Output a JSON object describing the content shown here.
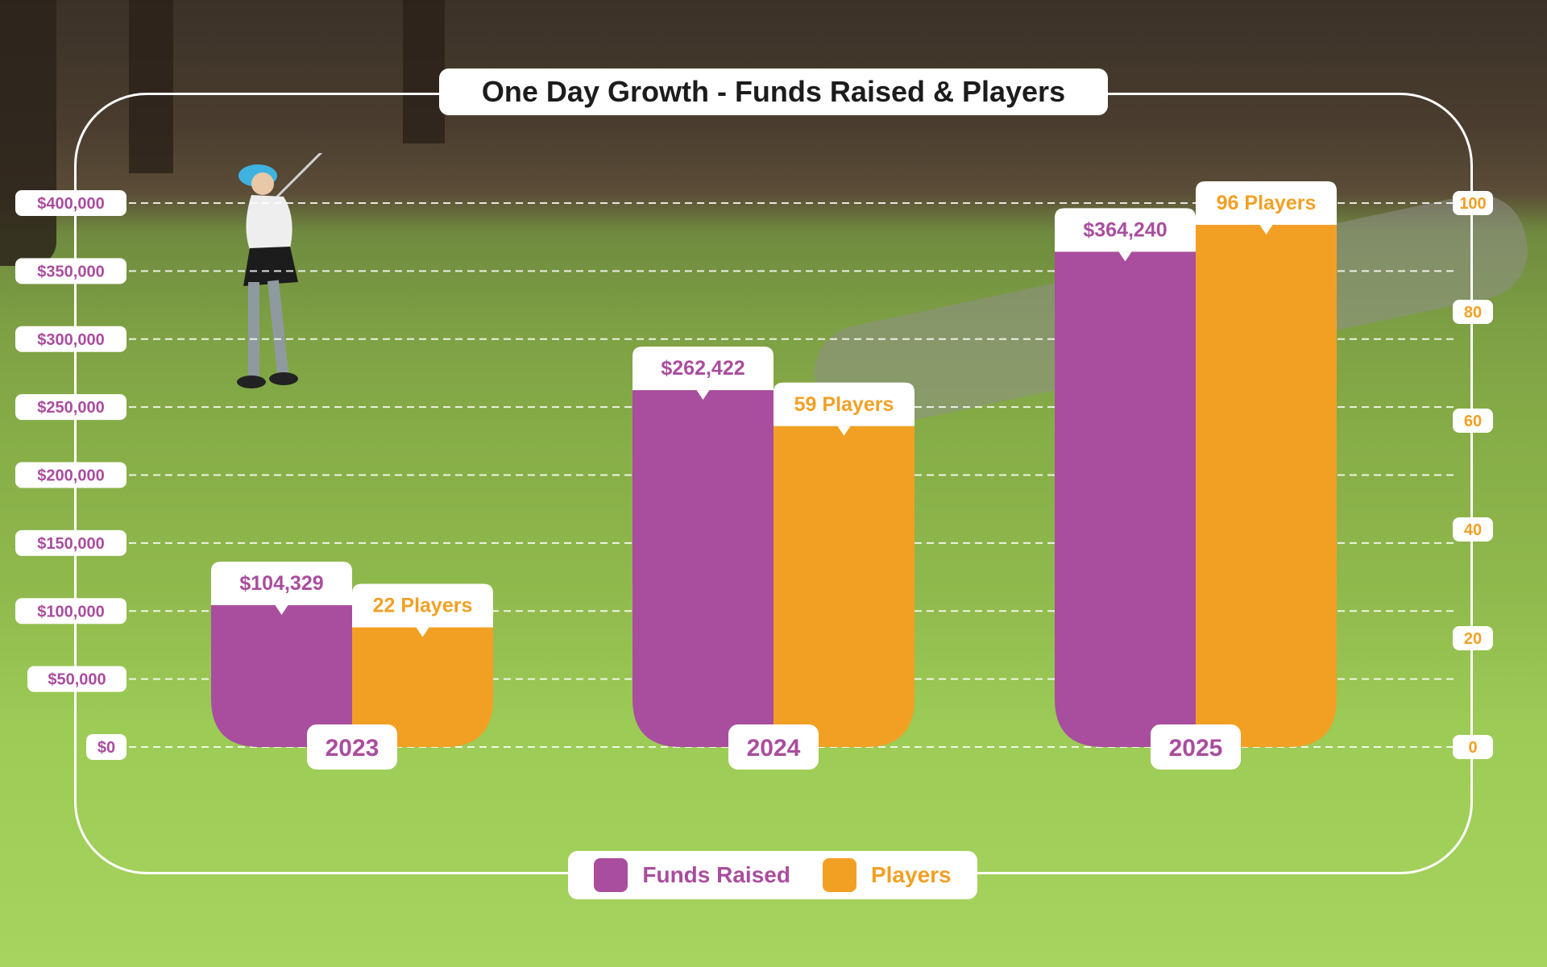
{
  "chart_data": {
    "type": "bar",
    "title": "One Day Growth - Funds Raised & Players",
    "categories": [
      "2023",
      "2024",
      "2025"
    ],
    "series": [
      {
        "name": "Funds Raised",
        "axis": "left",
        "color": "#a94d9e",
        "values": [
          104329,
          262422,
          364240
        ],
        "labels": [
          "$104,329",
          "$262,422",
          "$364,240"
        ]
      },
      {
        "name": "Players",
        "axis": "right",
        "color": "#f2a024",
        "values": [
          22,
          59,
          96
        ],
        "labels": [
          "22 Players",
          "59 Players",
          "96 Players"
        ]
      }
    ],
    "y_left": {
      "ticks": [
        0,
        50000,
        100000,
        150000,
        200000,
        250000,
        300000,
        350000,
        400000
      ],
      "tick_labels": [
        "$0",
        "$50,000",
        "$100,000",
        "$150,000",
        "$200,000",
        "$250,000",
        "$300,000",
        "$350,000",
        "$400,000"
      ]
    },
    "y_right": {
      "ticks": [
        0,
        20,
        40,
        60,
        80,
        100
      ],
      "tick_labels": [
        "0",
        "20",
        "40",
        "60",
        "80",
        "100"
      ]
    },
    "grid": true,
    "legend_position": "bottom-center"
  }
}
